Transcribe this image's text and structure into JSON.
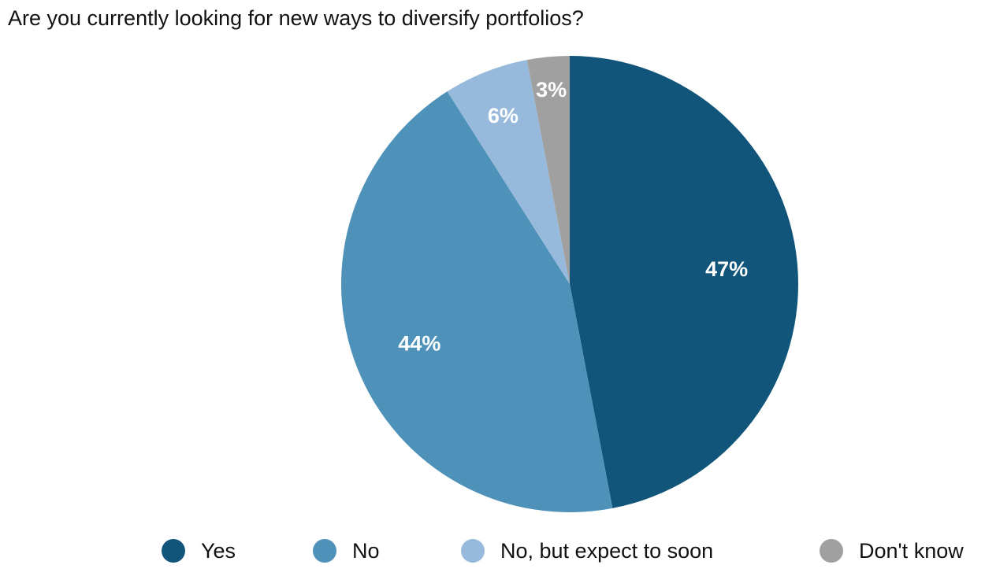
{
  "chart_data": {
    "type": "pie",
    "title": "Are you currently looking for new ways to diversify portfolios?",
    "start_angle_deg": 0,
    "direction": "clockwise",
    "legend_position": "bottom",
    "slices": [
      {
        "name": "Yes",
        "value": 47,
        "label": "47%",
        "color": "#11567A"
      },
      {
        "name": "No",
        "value": 44,
        "label": "44%",
        "color": "#4E92BA"
      },
      {
        "name": "No, but expect to soon",
        "value": 6,
        "label": "6%",
        "color": "#97BADC"
      },
      {
        "name": "Don't know",
        "value": 3,
        "label": "3%",
        "color": "#A0A0A0"
      }
    ]
  }
}
